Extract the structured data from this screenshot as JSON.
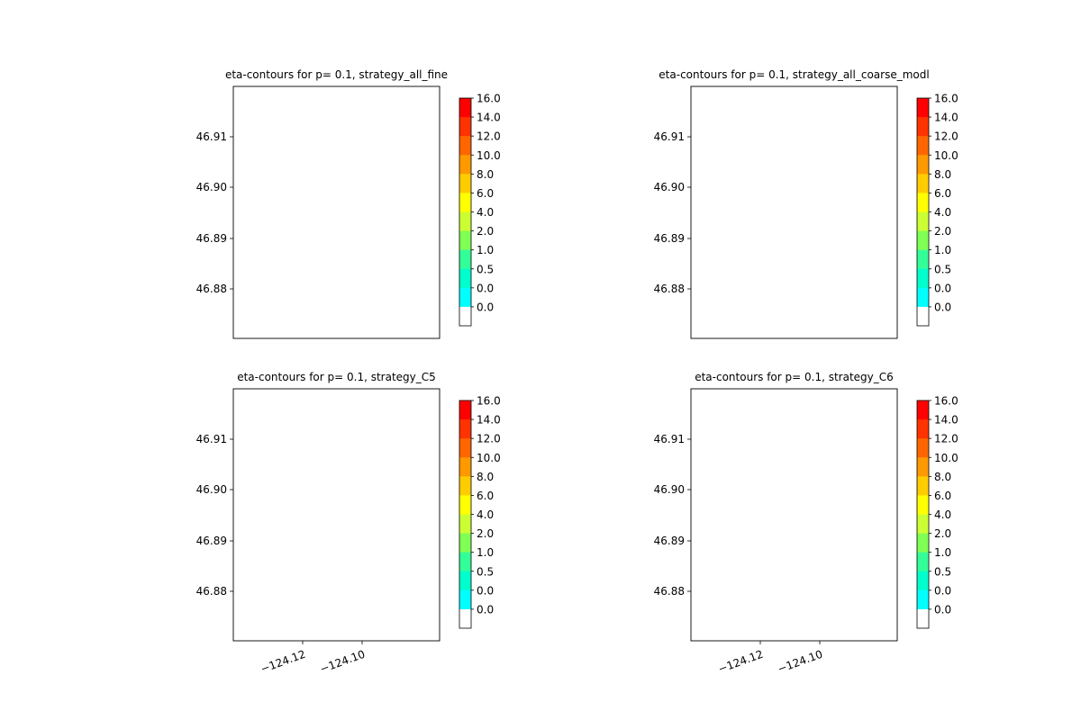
{
  "chart_data": [
    {
      "type": "contour",
      "title": "eta-contours for p= 0.1, strategy_all_fine",
      "xlabel": "",
      "ylabel": "",
      "y_ticks": [
        "46.91",
        "46.90",
        "46.89",
        "46.88"
      ],
      "x_ticks": [],
      "colorbar_levels": [
        "16.0",
        "14.0",
        "12.0",
        "10.0",
        "8.0",
        "6.0",
        "4.0",
        "2.0",
        "1.0",
        "0.5",
        "0.0",
        "0.0"
      ]
    },
    {
      "type": "contour",
      "title": "eta-contours for p= 0.1, strategy_all_coarse_modl",
      "xlabel": "",
      "ylabel": "",
      "y_ticks": [
        "46.91",
        "46.90",
        "46.89",
        "46.88"
      ],
      "x_ticks": [],
      "colorbar_levels": [
        "16.0",
        "14.0",
        "12.0",
        "10.0",
        "8.0",
        "6.0",
        "4.0",
        "2.0",
        "1.0",
        "0.5",
        "0.0",
        "0.0"
      ]
    },
    {
      "type": "contour",
      "title": "eta-contours for p= 0.1, strategy_C5",
      "xlabel": "",
      "ylabel": "",
      "y_ticks": [
        "46.91",
        "46.90",
        "46.89",
        "46.88"
      ],
      "x_ticks": [
        "−124.12",
        "−124.10"
      ],
      "colorbar_levels": [
        "16.0",
        "14.0",
        "12.0",
        "10.0",
        "8.0",
        "6.0",
        "4.0",
        "2.0",
        "1.0",
        "0.5",
        "0.0",
        "0.0"
      ]
    },
    {
      "type": "contour",
      "title": "eta-contours for p= 0.1, strategy_C6",
      "xlabel": "",
      "ylabel": "",
      "y_ticks": [
        "46.91",
        "46.90",
        "46.89",
        "46.88"
      ],
      "x_ticks": [
        "−124.12",
        "−124.10"
      ],
      "colorbar_levels": [
        "16.0",
        "14.0",
        "12.0",
        "10.0",
        "8.0",
        "6.0",
        "4.0",
        "2.0",
        "1.0",
        "0.5",
        "0.0",
        "0.0"
      ]
    }
  ],
  "colorbar_colors": [
    "#ff0000",
    "#ff3300",
    "#ff6600",
    "#ff9900",
    "#ffcc00",
    "#ffff00",
    "#ccff33",
    "#80ff55",
    "#33ff99",
    "#00ffcc",
    "#00ffff",
    "#ffffff"
  ],
  "coastline_color": "#000000"
}
